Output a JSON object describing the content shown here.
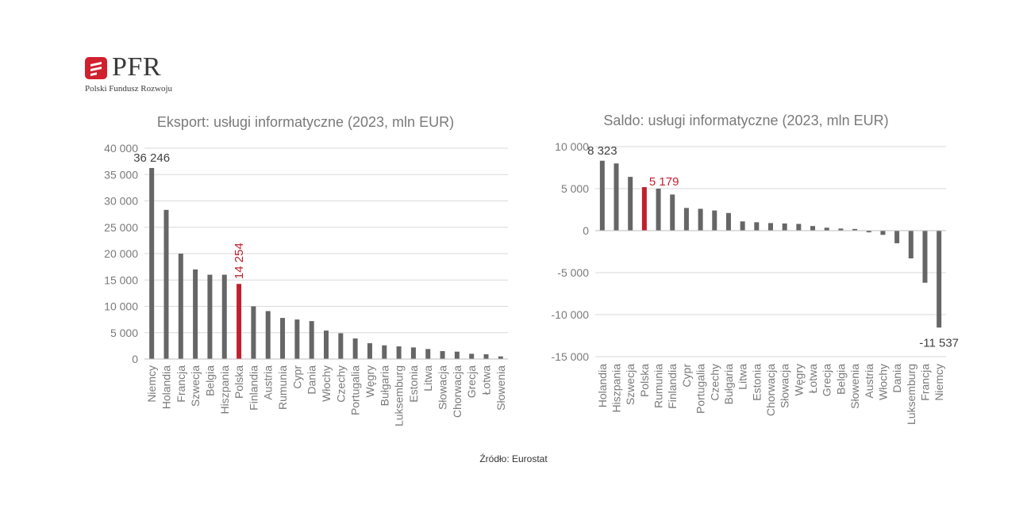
{
  "logo": {
    "text": "PFR",
    "subtitle": "Polski Fundusz Rozwoju",
    "color": "#d0202e"
  },
  "source": "Źródło: Eurostat",
  "colors": {
    "bar": "#666666",
    "highlight": "#c0202e",
    "grid": "#d9d9d9",
    "axis_text": "#7a7a7a",
    "title_text": "#7a7a7a"
  },
  "chart_data": [
    {
      "type": "bar",
      "title": "Eksport: usługi informatyczne (2023, mln EUR)",
      "categories": [
        "Niemcy",
        "Holandia",
        "Francja",
        "Szwecja",
        "Belgia",
        "Hiszpania",
        "Polska",
        "Finlandia",
        "Austria",
        "Rumunia",
        "Cypr",
        "Dania",
        "Włochy",
        "Czechy",
        "Portugalia",
        "Węgry",
        "Bułgaria",
        "Luksemburg",
        "Estonia",
        "Litwa",
        "Słowacja",
        "Chorwacja",
        "Grecja",
        "Łotwa",
        "Słowenia"
      ],
      "values": [
        36246,
        28300,
        20000,
        17000,
        16000,
        16000,
        14254,
        10000,
        9100,
        7800,
        7500,
        7200,
        5400,
        4900,
        3900,
        3000,
        2600,
        2400,
        2200,
        1900,
        1500,
        1400,
        1000,
        900,
        500
      ],
      "highlight": "Polska",
      "data_labels": [
        {
          "category": "Niemcy",
          "text": "36 246"
        },
        {
          "category": "Polska",
          "text": "14 254"
        }
      ],
      "ylim": [
        0,
        40000
      ],
      "yticks": [
        0,
        5000,
        10000,
        15000,
        20000,
        25000,
        30000,
        35000,
        40000
      ],
      "ytick_labels": [
        "0",
        "5 000",
        "10 000",
        "15 000",
        "20 000",
        "25 000",
        "30 000",
        "35 000",
        "40 000"
      ],
      "grid": true
    },
    {
      "type": "bar",
      "title": "Saldo: usługi informatyczne (2023, mln EUR)",
      "categories": [
        "Holandia",
        "Hiszpania",
        "Szwecja",
        "Polska",
        "Rumunia",
        "Finlandia",
        "Cypr",
        "Portugalia",
        "Czechy",
        "Bułgaria",
        "Litwa",
        "Estonia",
        "Chorwacja",
        "Słowacja",
        "Węgry",
        "Łotwa",
        "Grecja",
        "Belgia",
        "Słowenia",
        "Austria",
        "Włochy",
        "Dania",
        "Luksemburg",
        "Francja",
        "Niemcy"
      ],
      "values": [
        8323,
        8000,
        6400,
        5179,
        5000,
        4300,
        2700,
        2600,
        2400,
        2100,
        1100,
        1000,
        900,
        850,
        800,
        550,
        350,
        250,
        200,
        -200,
        -500,
        -1500,
        -3300,
        -6200,
        -11537
      ],
      "highlight": "Polska",
      "data_labels": [
        {
          "category": "Holandia",
          "text": "8 323"
        },
        {
          "category": "Polska",
          "text": "5 179"
        },
        {
          "category": "Niemcy",
          "text": "-11 537"
        }
      ],
      "ylim": [
        -15000,
        10000
      ],
      "yticks": [
        -15000,
        -10000,
        -5000,
        0,
        5000,
        10000
      ],
      "ytick_labels": [
        "-15 000",
        "-10 000",
        "-5 000",
        "0",
        "5 000",
        "10 000"
      ],
      "grid": true
    }
  ]
}
